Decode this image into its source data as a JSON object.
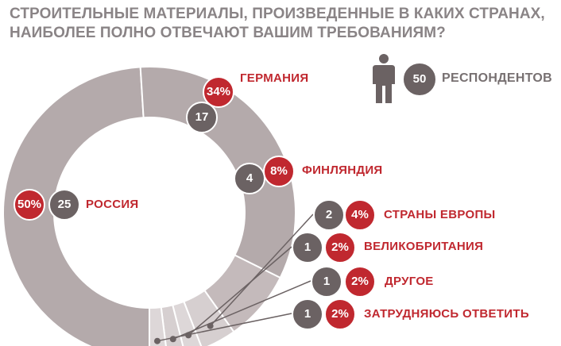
{
  "title": {
    "line1": "СТРОИТЕЛЬНЫЕ МАТЕРИАЛЫ, ПРОИЗВЕДЕННЫЕ В КАКИХ СТРАНАХ,",
    "line2": "НАИБОЛЕЕ ПОЛНО ОТВЕЧАЮТ ВАШИМ ТРЕБОВАНИЯМ?"
  },
  "respondents": {
    "count": "50",
    "label": "РЕСПОНДЕНТОВ",
    "icon": "person-icon"
  },
  "colors": {
    "accent": "#c0282f",
    "badge": "#6b6263",
    "ring_dark": "#b4aaab",
    "ring_light": "#d6cfd0",
    "title": "#8a8486"
  },
  "chart_data": {
    "type": "pie",
    "donut": true,
    "title": "СТРОИТЕЛЬНЫЕ МАТЕРИАЛЫ, ПРОИЗВЕДЕННЫЕ В КАКИХ СТРАНАХ, НАИБОЛЕЕ ПОЛНО ОТВЕЧАЮТ ВАШИМ ТРЕБОВАНИЯМ?",
    "total_respondents": 50,
    "slices": [
      {
        "label": "РОССИЯ",
        "count": 25,
        "percent": 50,
        "count_text": "25",
        "percent_text": "50%",
        "color": "#b4aaab"
      },
      {
        "label": "ГЕРМАНИЯ",
        "count": 17,
        "percent": 34,
        "count_text": "17",
        "percent_text": "34%",
        "color": "#b4aaab"
      },
      {
        "label": "ФИНЛЯНДИЯ",
        "count": 4,
        "percent": 8,
        "count_text": "4",
        "percent_text": "8%",
        "color": "#c4babb"
      },
      {
        "label": "СТРАНЫ ЕВРОПЫ",
        "count": 2,
        "percent": 4,
        "count_text": "2",
        "percent_text": "4%",
        "color": "#d6cfd0"
      },
      {
        "label": "ВЕЛИКОБРИТАНИЯ",
        "count": 1,
        "percent": 2,
        "count_text": "1",
        "percent_text": "2%",
        "color": "#ddd7d8"
      },
      {
        "label": "ДРУГОЕ",
        "count": 1,
        "percent": 2,
        "count_text": "1",
        "percent_text": "2%",
        "color": "#d6cfd0"
      },
      {
        "label": "ЗАТРУДНЯЮСЬ ОТВЕТИТЬ",
        "count": 1,
        "percent": 2,
        "count_text": "1",
        "percent_text": "2%",
        "color": "#ddd7d8"
      }
    ]
  }
}
